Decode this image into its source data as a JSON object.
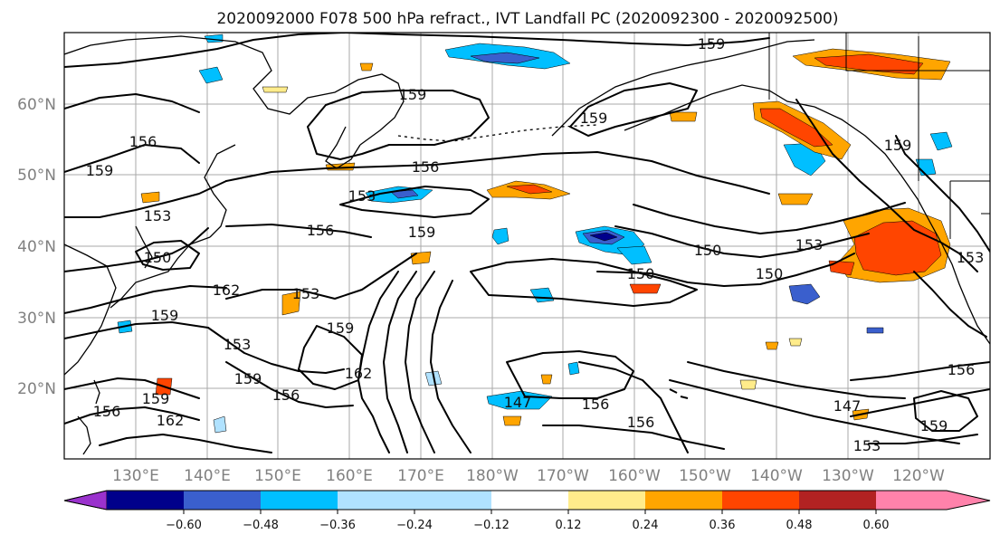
{
  "title": "2020092000 F078 500 hPa refract., IVT Landfall PC (2020092300 - 2020092500)",
  "lat_labels": [
    "60°N",
    "50°N",
    "40°N",
    "30°N",
    "20°N"
  ],
  "lon_labels": [
    "130°E",
    "140°E",
    "150°E",
    "160°E",
    "170°E",
    "180°W",
    "170°W",
    "160°W",
    "150°W",
    "140°W",
    "130°W",
    "120°W"
  ],
  "contour_labels": [
    "159",
    "159",
    "159",
    "156",
    "159",
    "156",
    "153",
    "156",
    "159",
    "150",
    "153",
    "150",
    "150",
    "153",
    "159",
    "153",
    "150",
    "162",
    "153",
    "159",
    "153",
    "159",
    "156",
    "159",
    "162",
    "156",
    "159",
    "162",
    "156",
    "147",
    "147",
    "156",
    "159",
    "153",
    "156"
  ],
  "colorbar": {
    "ticks": [
      "−0.60",
      "−0.48",
      "−0.36",
      "−0.24",
      "−0.12",
      "0.12",
      "0.24",
      "0.36",
      "0.48",
      "0.60"
    ],
    "colors": [
      "#9a32cd",
      "#00008b",
      "#3a5fcd",
      "#00bfff",
      "#b0e2ff",
      "#ffffff",
      "#ffec8b",
      "#ffa500",
      "#ff4500",
      "#b22222",
      "#ff82ab"
    ]
  }
}
